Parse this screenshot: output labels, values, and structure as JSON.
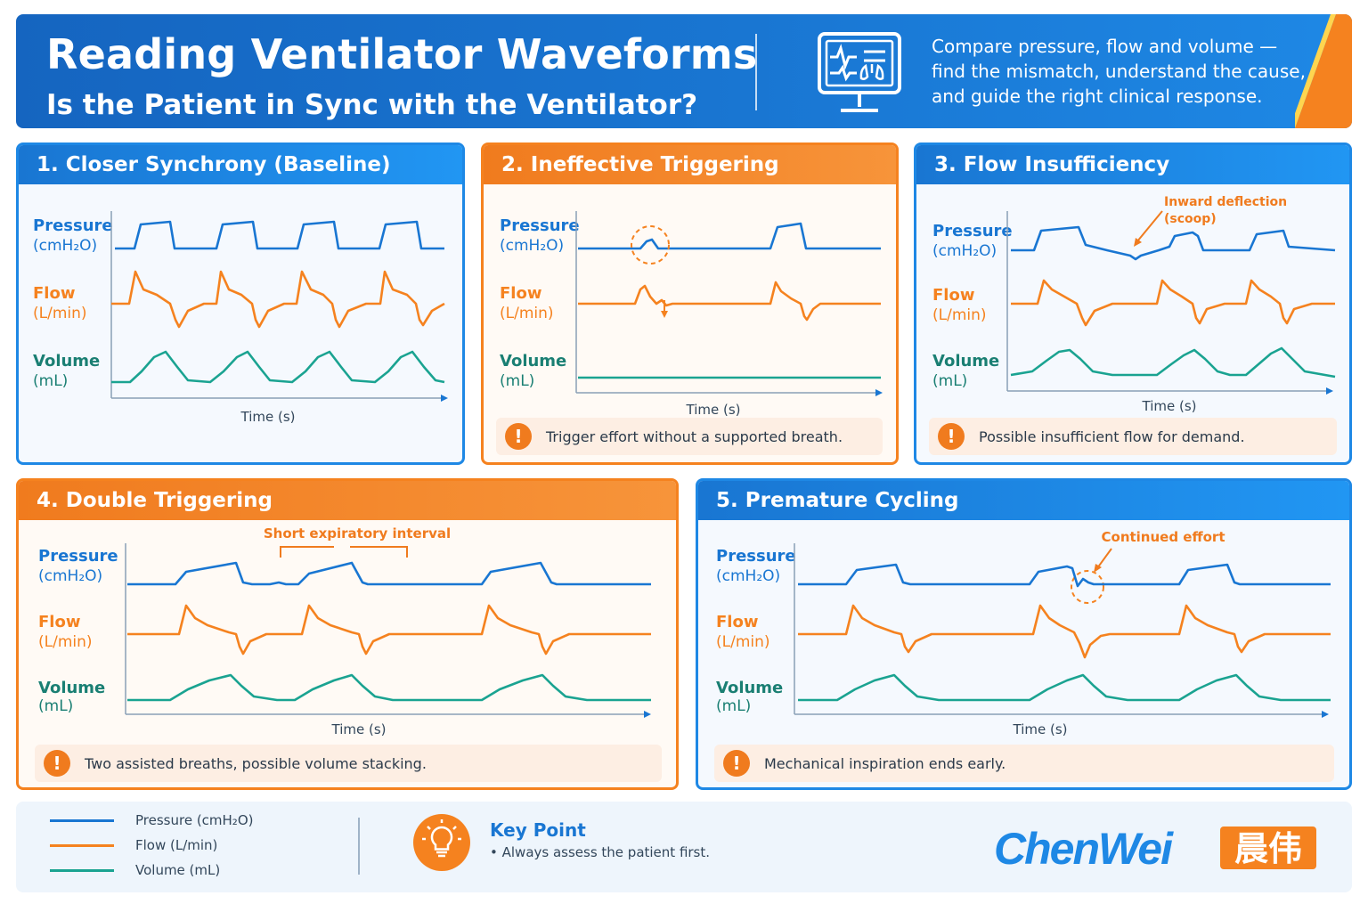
{
  "header": {
    "title": "Reading Ventilator Waveforms",
    "subtitle": "Is the Patient in Sync with the Ventilator?",
    "description": "Compare pressure, flow and volume — find the mismatch, understand the cause, and guide the right clinical response.",
    "icon": "monitor-lungs-icon"
  },
  "labels": {
    "pressure": "Pressure",
    "pressure_unit": "(cmH₂O)",
    "flow": "Flow",
    "flow_unit": "(L/min)",
    "volume": "Volume",
    "volume_unit": "(mL)",
    "time": "Time (s)"
  },
  "panels": [
    {
      "number": "1.",
      "title": "Closer Synchrony (Baseline)",
      "alert": ""
    },
    {
      "number": "2.",
      "title": "Ineffective Triggering",
      "alert": "Trigger effort without a supported breath."
    },
    {
      "number": "3.",
      "title": "Flow Insufficiency",
      "annotation": "Inward deflection (scoop)",
      "alert": "Possible insufficient flow for demand."
    },
    {
      "number": "4.",
      "title": "Double Triggering",
      "annotation": "Short expiratory interval",
      "alert": "Two assisted breaths, possible volume stacking."
    },
    {
      "number": "5.",
      "title": "Premature Cycling",
      "annotation": "Continued effort",
      "alert": "Mechanical inspiration ends early."
    }
  ],
  "alert_icon": "exclamation-icon",
  "legend": [
    {
      "label": "Pressure (cmH₂O)",
      "color": "#1976d2"
    },
    {
      "label": "Flow (L/min)",
      "color": "#f5821f"
    },
    {
      "label": "Volume (mL)",
      "color": "#1aa391"
    }
  ],
  "key_point": {
    "title": "Key Point",
    "text": "•  Always assess the patient first.",
    "icon": "lightbulb-icon"
  },
  "logo": {
    "text": "ChenWei",
    "cn": "晨伟"
  },
  "colors": {
    "pressure": "#1976d2",
    "flow": "#f5821f",
    "volume": "#1aa391",
    "header_blue": "#1976d2",
    "accent_orange": "#f5821f"
  }
}
